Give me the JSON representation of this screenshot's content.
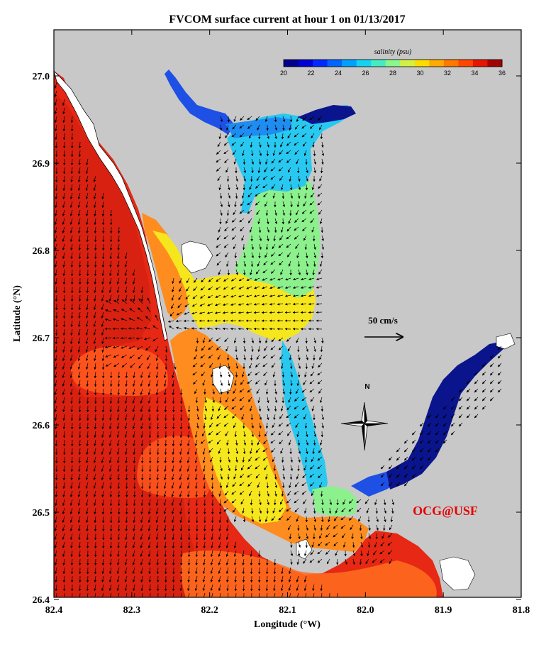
{
  "title": "FVCOM surface current at hour 1 on 01/13/2017",
  "axes": {
    "xlabel": "Longitude (°W)",
    "ylabel": "Latitude (°N)",
    "lon_ticks": [
      "82.4",
      "82.3",
      "82.2",
      "82.1",
      "82.0",
      "81.9",
      "81.8"
    ],
    "lat_ticks": [
      "27.0",
      "26.9",
      "26.8",
      "26.7",
      "26.6",
      "26.5",
      "26.4"
    ]
  },
  "colorbar": {
    "title": "salinity (psu)",
    "ticks": [
      "20",
      "22",
      "24",
      "26",
      "28",
      "30",
      "32",
      "34",
      "36"
    ],
    "colors": [
      "#00008c",
      "#0000d2",
      "#0028ff",
      "#0064ff",
      "#00a0ff",
      "#14d2f0",
      "#46ebc3",
      "#8cf58c",
      "#d2f046",
      "#fadc00",
      "#ffaa00",
      "#ff7800",
      "#ff4600",
      "#e61400",
      "#a00000"
    ]
  },
  "scale_label": "50 cm/s",
  "compass_label": "N",
  "watermark": "OCG@USF",
  "colors": {
    "land": "#c8c8c8",
    "gulf": "#e62814",
    "gulf_deep": "#d21e0f",
    "plume": "#ff5a1e",
    "bay_orange": "#ff8c1e",
    "bay_yellow": "#f5e61e",
    "bay_green": "#8cf08c",
    "bay_cyan": "#28c8f0",
    "river_blue": "#1e64ff",
    "river_navy": "#0a148c",
    "watermark": "#e60000"
  }
}
